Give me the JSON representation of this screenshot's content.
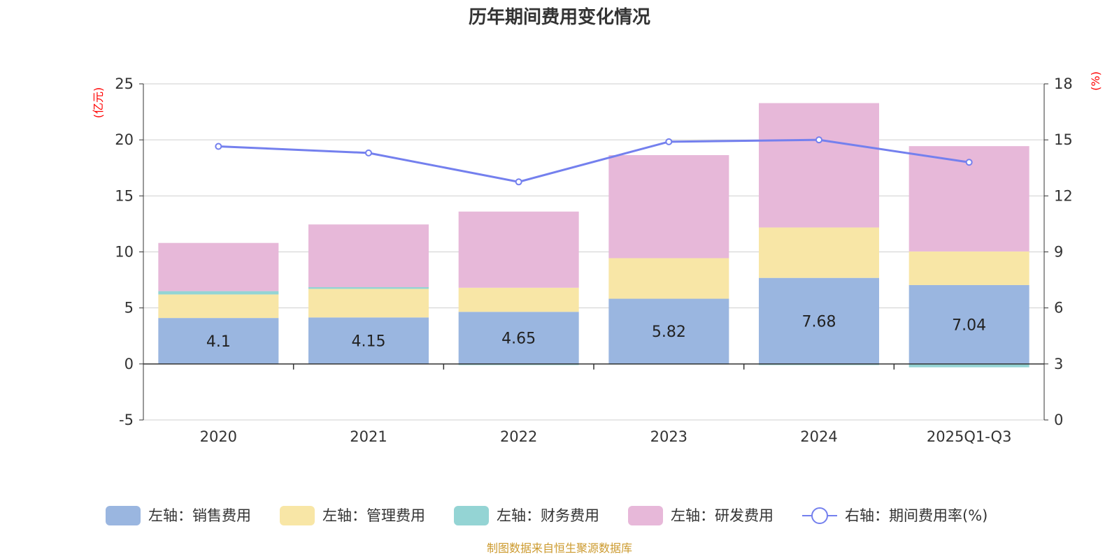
{
  "chart_data": {
    "type": "bar",
    "stacked": true,
    "title": "历年期间费用变化情况",
    "categories": [
      "2020",
      "2021",
      "2022",
      "2023",
      "2024",
      "2025Q1-Q3"
    ],
    "left_axis": {
      "unit": "(亿元)",
      "range": [
        -5,
        25
      ],
      "ticks": [
        -5,
        0,
        5,
        10,
        15,
        20,
        25
      ]
    },
    "right_axis": {
      "unit": "(%)",
      "range": [
        0,
        18
      ],
      "ticks": [
        0,
        3,
        6,
        9,
        12,
        15,
        18
      ]
    },
    "series": [
      {
        "name": "左轴：销售费用",
        "axis": "left",
        "color": "#9ab6e0",
        "values": [
          4.1,
          4.15,
          4.65,
          5.82,
          7.68,
          7.04
        ],
        "labels": [
          "4.1",
          "4.15",
          "4.65",
          "5.82",
          "7.68",
          "7.04"
        ]
      },
      {
        "name": "左轴：管理费用",
        "axis": "left",
        "color": "#f8e6a6",
        "values": [
          2.1,
          2.55,
          2.15,
          3.62,
          4.5,
          3.0
        ]
      },
      {
        "name": "左轴：财务费用",
        "axis": "left",
        "color": "#94d4d4",
        "values": [
          0.3,
          0.15,
          -0.1,
          -0.05,
          -0.1,
          -0.3
        ]
      },
      {
        "name": "左轴：研发费用",
        "axis": "left",
        "color": "#e7b8d9",
        "values": [
          4.3,
          5.6,
          6.8,
          9.2,
          11.1,
          9.4
        ]
      }
    ],
    "line_series": {
      "name": "右轴：期间费用率(%)",
      "axis": "right",
      "color": "#7480ee",
      "values": [
        14.65,
        14.3,
        12.75,
        14.9,
        15.0,
        13.8
      ]
    },
    "grid": true,
    "legend_position": "bottom"
  },
  "footer": {
    "source": "制图数据来自恒生聚源数据库"
  }
}
